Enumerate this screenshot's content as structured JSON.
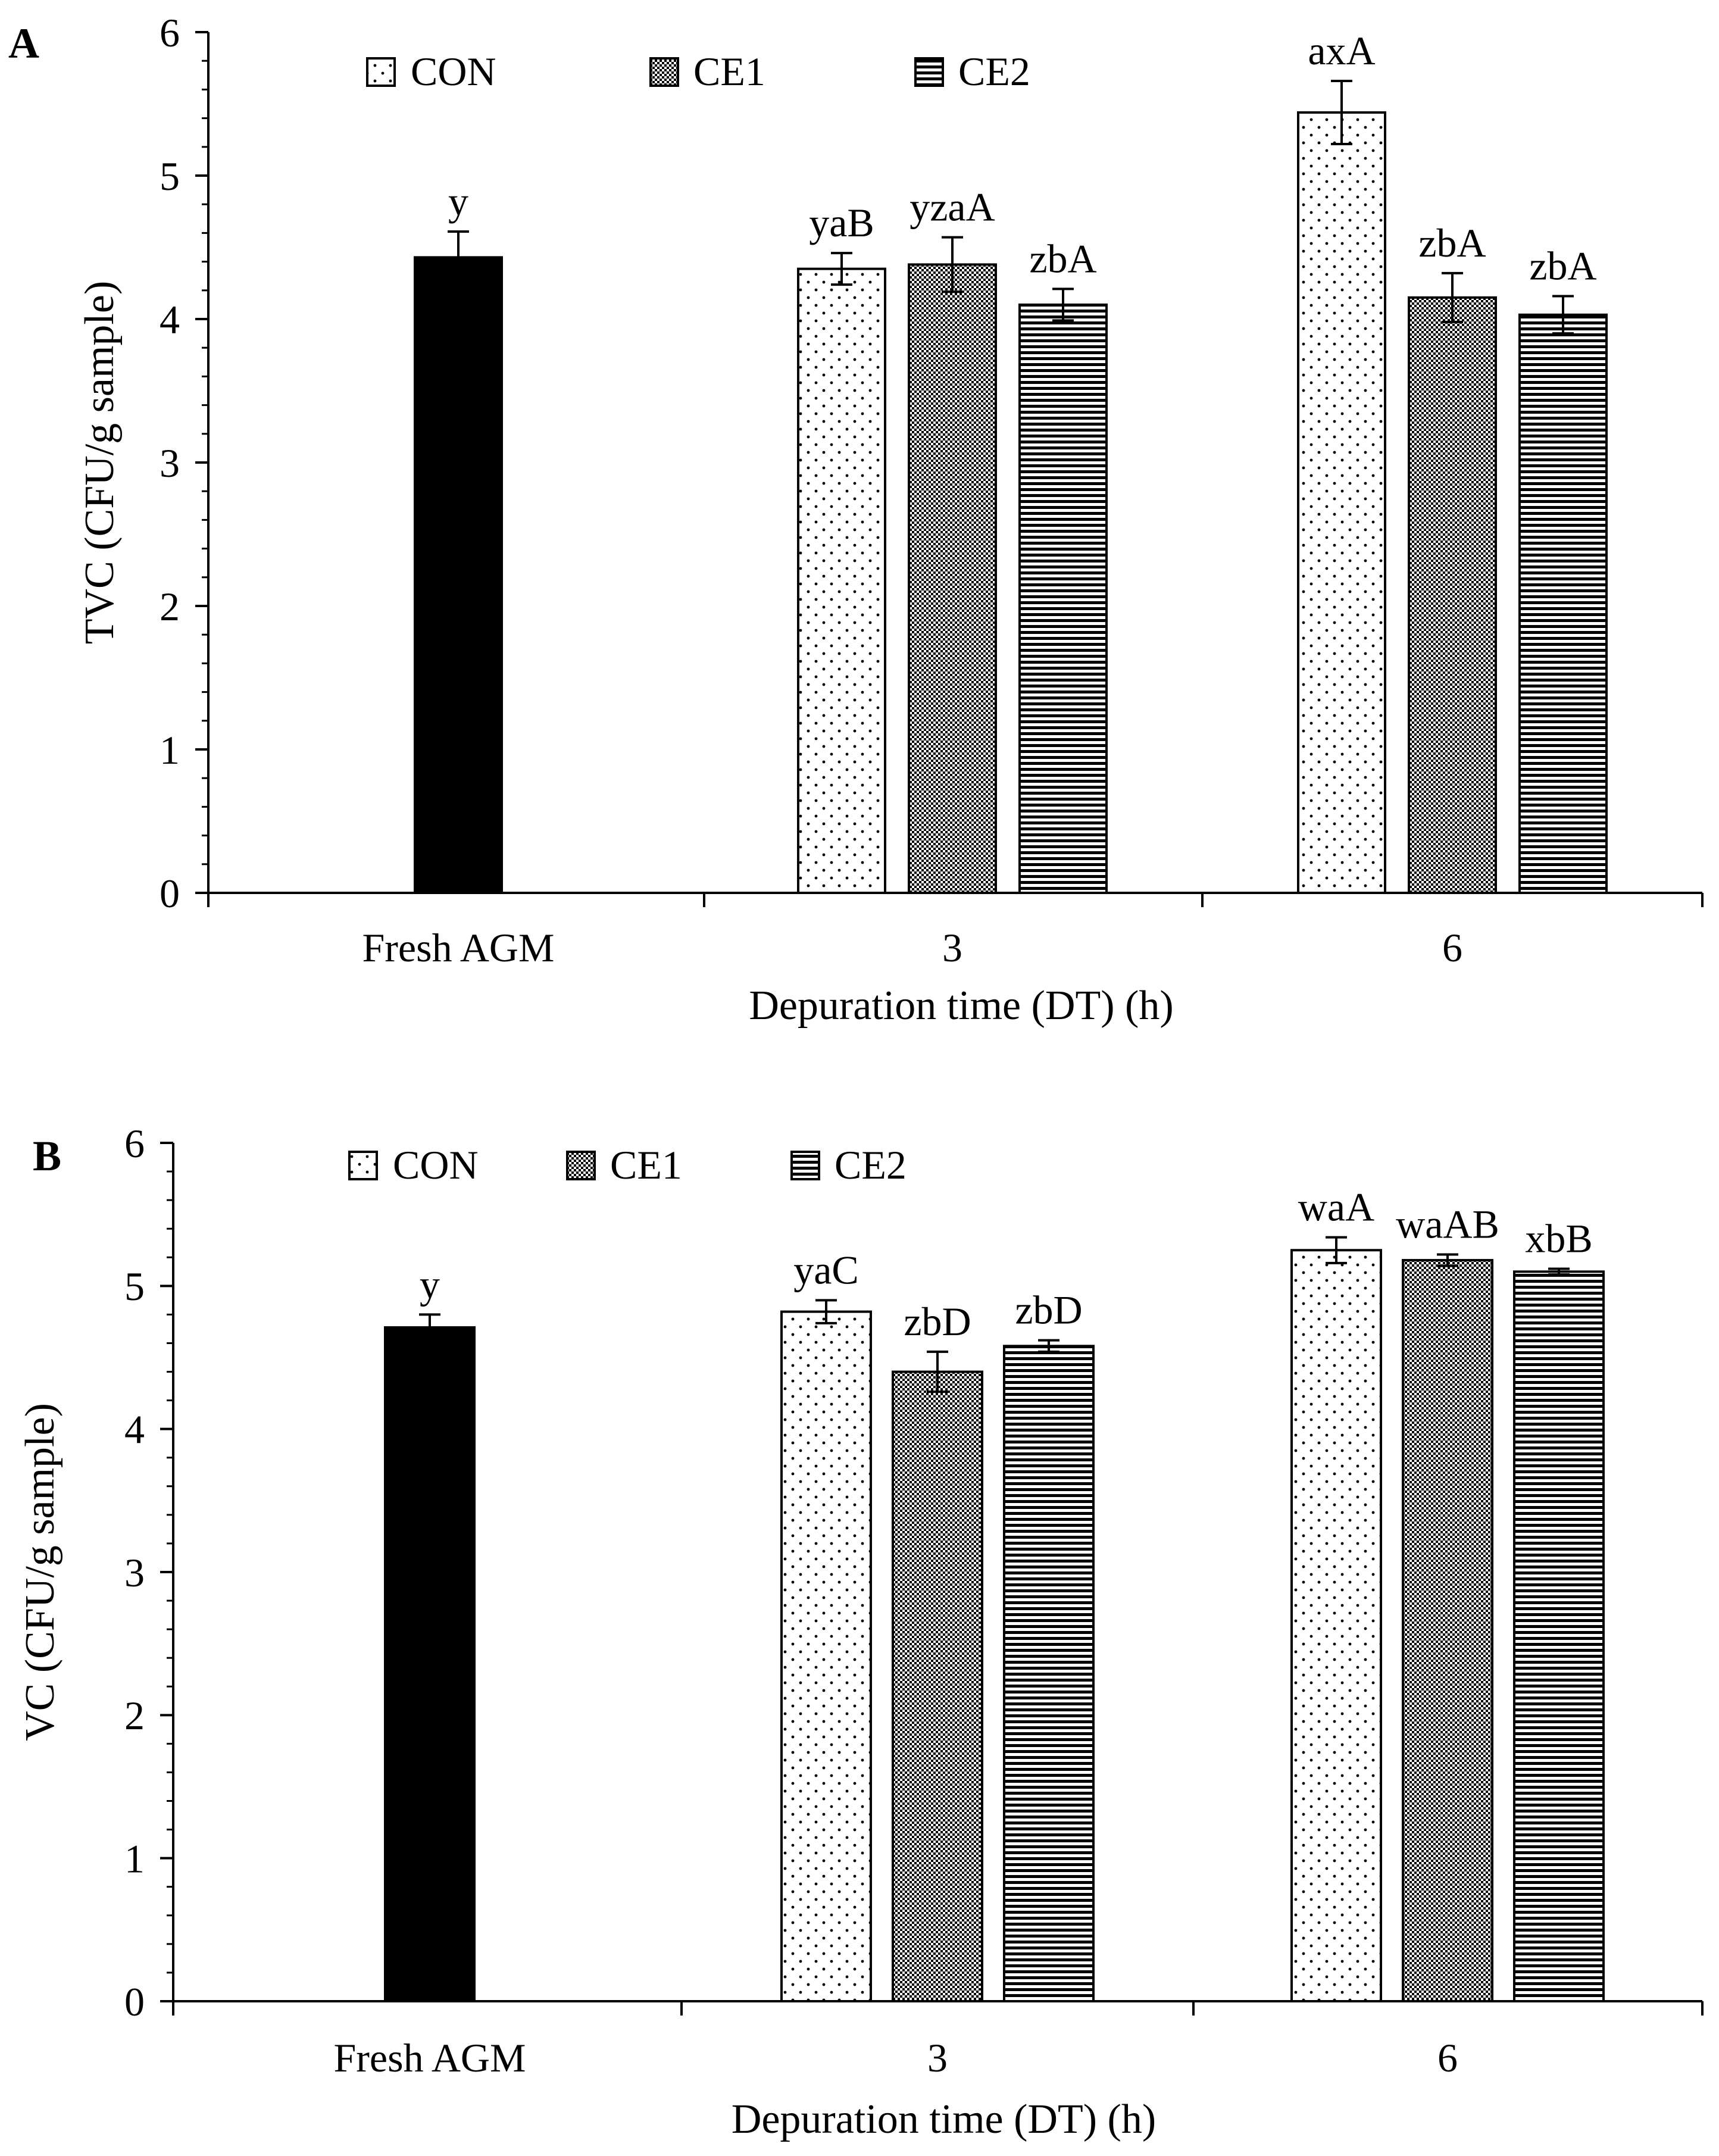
{
  "chart_data": [
    {
      "type": "bar",
      "panel_label": "A",
      "ylabel": "TVC (CFU/g sample)",
      "xlabel": "Depuration time (DT) (h)",
      "ylim": [
        0,
        6
      ],
      "yticks": [
        "0",
        "1",
        "2",
        "3",
        "4",
        "5",
        "6"
      ],
      "legend": [
        "CON",
        "CE1",
        "CE2"
      ],
      "groups": [
        {
          "label": "Fresh AGM",
          "bars": [
            {
              "series": "Fresh",
              "value": 4.43,
              "error": 0.18,
              "annotation": "y"
            }
          ]
        },
        {
          "label": "3",
          "bars": [
            {
              "series": "CON",
              "value": 4.35,
              "error": 0.11,
              "annotation": "yaB"
            },
            {
              "series": "CE1",
              "value": 4.38,
              "error": 0.19,
              "annotation": "yzaA"
            },
            {
              "series": "CE2",
              "value": 4.1,
              "error": 0.11,
              "annotation": "zbA"
            }
          ]
        },
        {
          "label": "6",
          "bars": [
            {
              "series": "CON",
              "value": 5.44,
              "error": 0.22,
              "annotation": "axA"
            },
            {
              "series": "CE1",
              "value": 4.15,
              "error": 0.17,
              "annotation": "zbA"
            },
            {
              "series": "CE2",
              "value": 4.03,
              "error": 0.13,
              "annotation": "zbA"
            }
          ]
        }
      ]
    },
    {
      "type": "bar",
      "panel_label": "B",
      "ylabel": "VC (CFU/g sample)",
      "xlabel": "Depuration time (DT) (h)",
      "ylim": [
        0,
        6
      ],
      "yticks": [
        "0",
        "1",
        "2",
        "3",
        "4",
        "5",
        "6"
      ],
      "legend": [
        "CON",
        "CE1",
        "CE2"
      ],
      "groups": [
        {
          "label": "Fresh AGM",
          "bars": [
            {
              "series": "Fresh",
              "value": 4.71,
              "error": 0.09,
              "annotation": "y"
            }
          ]
        },
        {
          "label": "3",
          "bars": [
            {
              "series": "CON",
              "value": 4.82,
              "error": 0.08,
              "annotation": "yaC"
            },
            {
              "series": "CE1",
              "value": 4.4,
              "error": 0.14,
              "annotation": "zbD"
            },
            {
              "series": "CE2",
              "value": 4.58,
              "error": 0.04,
              "annotation": "zbD"
            }
          ]
        },
        {
          "label": "6",
          "bars": [
            {
              "series": "CON",
              "value": 5.25,
              "error": 0.09,
              "annotation": "waA"
            },
            {
              "series": "CE1",
              "value": 5.18,
              "error": 0.04,
              "annotation": "waAB"
            },
            {
              "series": "CE2",
              "value": 5.1,
              "error": 0.02,
              "annotation": "xbB"
            }
          ]
        }
      ]
    }
  ]
}
